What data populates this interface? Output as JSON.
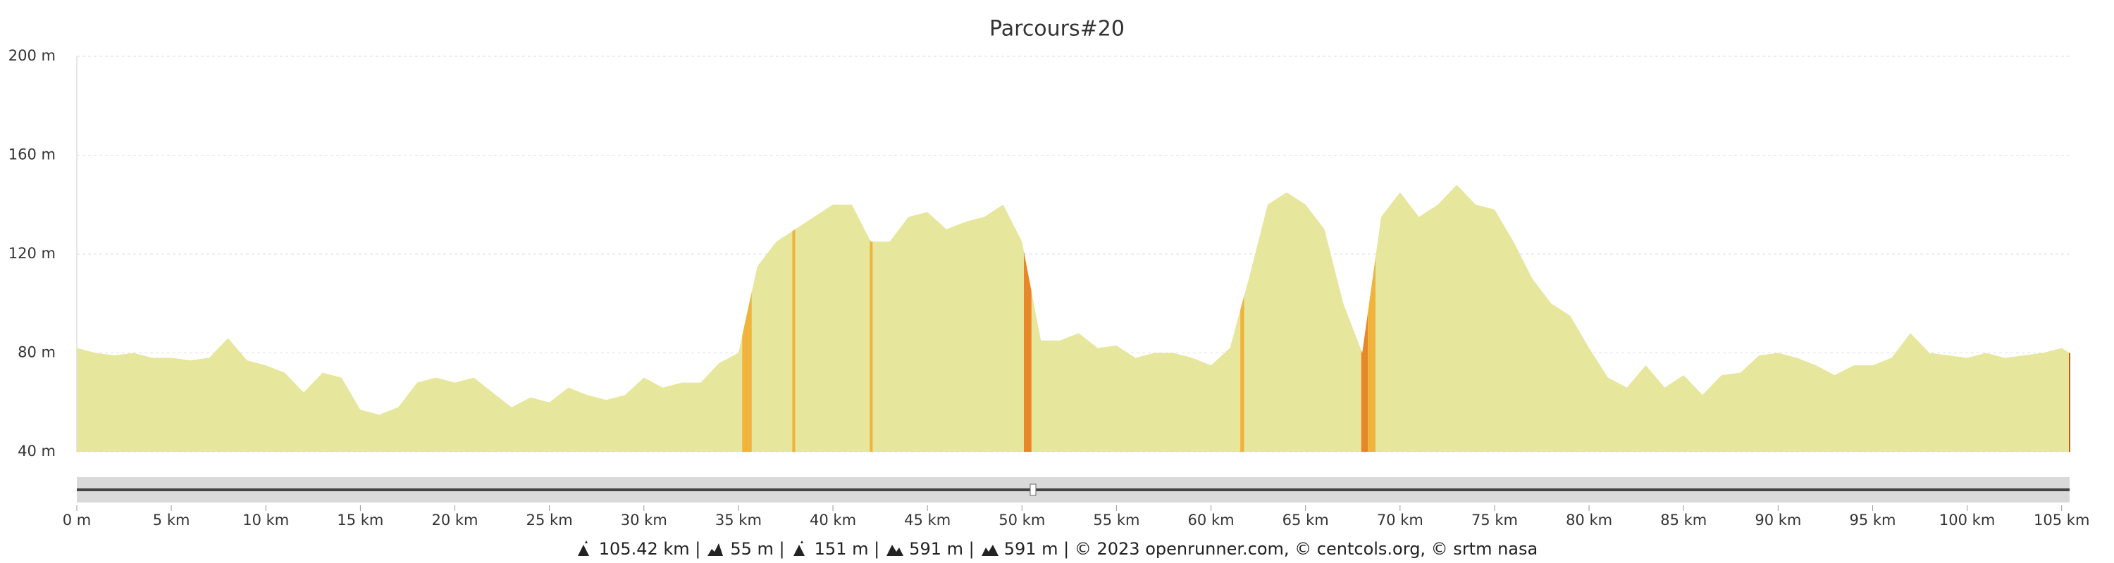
{
  "chart_data": {
    "type": "area",
    "title": "Parcours#20",
    "x": [
      0,
      1,
      2,
      3,
      4,
      5,
      6,
      7,
      8,
      9,
      10,
      11,
      12,
      13,
      14,
      15,
      16,
      17,
      18,
      19,
      20,
      21,
      22,
      23,
      24,
      25,
      26,
      27,
      28,
      29,
      30,
      31,
      32,
      33,
      34,
      35,
      36,
      37,
      38,
      39,
      40,
      41,
      42,
      43,
      44,
      45,
      46,
      47,
      48,
      49,
      50,
      51,
      52,
      53,
      54,
      55,
      56,
      57,
      58,
      59,
      60,
      61,
      62,
      63,
      64,
      65,
      66,
      67,
      68,
      69,
      70,
      71,
      72,
      73,
      74,
      75,
      76,
      77,
      78,
      79,
      80,
      81,
      82,
      83,
      84,
      85,
      86,
      87,
      88,
      89,
      90,
      91,
      92,
      93,
      94,
      95,
      96,
      97,
      98,
      99,
      100,
      101,
      102,
      103,
      104,
      105,
      105.42
    ],
    "values": [
      82,
      80,
      79,
      80,
      78,
      78,
      77,
      78,
      86,
      77,
      75,
      72,
      64,
      72,
      70,
      57,
      55,
      58,
      68,
      70,
      68,
      70,
      64,
      58,
      62,
      60,
      66,
      63,
      61,
      63,
      70,
      66,
      68,
      68,
      76,
      80,
      115,
      125,
      130,
      135,
      140,
      140,
      125,
      125,
      135,
      137,
      130,
      133,
      135,
      140,
      125,
      85,
      85,
      88,
      82,
      83,
      78,
      80,
      80,
      78,
      75,
      82,
      110,
      140,
      145,
      140,
      130,
      100,
      80,
      135,
      145,
      135,
      140,
      148,
      140,
      138,
      125,
      110,
      100,
      95,
      82,
      70,
      66,
      75,
      66,
      71,
      63,
      71,
      72,
      79,
      80,
      78,
      75,
      71,
      75,
      75,
      78,
      88,
      80,
      79,
      78,
      80,
      78,
      79,
      80,
      82,
      80
    ],
    "color": "#e6e69c",
    "highlights": [
      {
        "from": 35.2,
        "to": 35.7,
        "color": "#f0b43c"
      },
      {
        "from": 37.85,
        "to": 38.0,
        "color": "#f0b43c"
      },
      {
        "from": 41.95,
        "to": 42.1,
        "color": "#f0b43c"
      },
      {
        "from": 50.1,
        "to": 50.5,
        "color": "#e8862a"
      },
      {
        "from": 61.55,
        "to": 61.75,
        "color": "#f0b43c"
      },
      {
        "from": 67.95,
        "to": 68.3,
        "color": "#e8862a"
      },
      {
        "from": 68.3,
        "to": 68.7,
        "color": "#f0b43c"
      }
    ],
    "xlim": [
      0,
      105.42
    ],
    "ylim": [
      40,
      200
    ],
    "xticks": [
      {
        "value": 0,
        "label": "0 m"
      },
      {
        "value": 5,
        "label": "5 km"
      },
      {
        "value": 10,
        "label": "10 km"
      },
      {
        "value": 15,
        "label": "15 km"
      },
      {
        "value": 20,
        "label": "20 km"
      },
      {
        "value": 25,
        "label": "25 km"
      },
      {
        "value": 30,
        "label": "30 km"
      },
      {
        "value": 35,
        "label": "35 km"
      },
      {
        "value": 40,
        "label": "40 km"
      },
      {
        "value": 45,
        "label": "45 km"
      },
      {
        "value": 50,
        "label": "50 km"
      },
      {
        "value": 55,
        "label": "55 km"
      },
      {
        "value": 60,
        "label": "60 km"
      },
      {
        "value": 65,
        "label": "65 km"
      },
      {
        "value": 70,
        "label": "70 km"
      },
      {
        "value": 75,
        "label": "75 km"
      },
      {
        "value": 80,
        "label": "80 km"
      },
      {
        "value": 85,
        "label": "85 km"
      },
      {
        "value": 90,
        "label": "90 km"
      },
      {
        "value": 95,
        "label": "95 km"
      },
      {
        "value": 100,
        "label": "100 km"
      },
      {
        "value": 105,
        "label": "105 km"
      }
    ],
    "yticks": [
      {
        "value": 40,
        "label": "40 m"
      },
      {
        "value": 80,
        "label": "80 m"
      },
      {
        "value": 120,
        "label": "120 m"
      },
      {
        "value": 160,
        "label": "160 m"
      },
      {
        "value": 200,
        "label": "200 m"
      }
    ],
    "grid": true,
    "stats": [
      "105.42 km |",
      "55 m |",
      "151 m |",
      "591 m |",
      "591 m | © 2023 openrunner.com, © centcols.org, © srtm nasa"
    ]
  }
}
